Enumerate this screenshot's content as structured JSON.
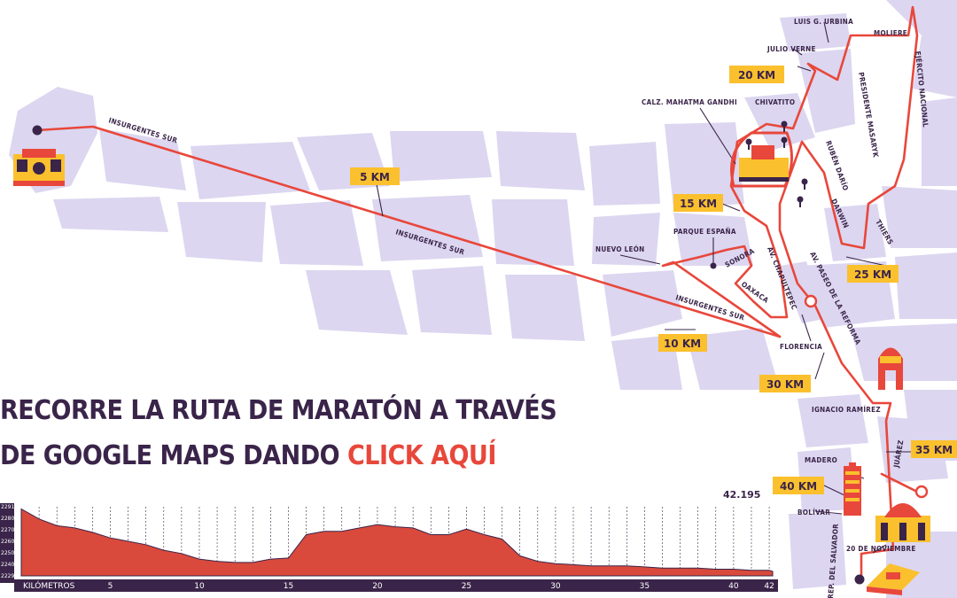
{
  "colors": {
    "route": "#e8473b",
    "block": "#dcd6f0",
    "ink": "#3a2449",
    "badge": "#fbc02d",
    "profile_fill": "#d94a3c",
    "axis_bar": "#3a2449"
  },
  "headline": {
    "line1": "RECORRE LA RUTA DE MARATÓN A TRAVÉS",
    "line2_prefix": "DE GOOGLE MAPS DANDO ",
    "cta": "CLICK AQUÍ"
  },
  "km_markers": {
    "km5": "5 KM",
    "km10": "10 KM",
    "km15": "15 KM",
    "km20": "20 KM",
    "km25": "25 KM",
    "km30": "30 KM",
    "km35": "35 KM",
    "km40": "40 KM"
  },
  "streets": {
    "insurgentes_1": "INSURGENTES SUR",
    "insurgentes_2": "INSURGENTES SUR",
    "insurgentes_3": "INSURGENTES SUR",
    "nuevo_leon": "NUEVO LEÓN",
    "parque_espana": "PARQUE ESPAÑA",
    "sonora": "SONORA",
    "oaxaca": "OAXACA",
    "chapultepec": "AV. CHAPULTEPEC",
    "reforma": "AV. PASEO DE LA REFORMA",
    "florencia": "FLORENCIA",
    "ignacio": "IGNACIO RAMÍREZ",
    "juarez": "JUÁREZ",
    "madero": "MADERO",
    "bolivar": "BOLÍVAR",
    "veinte_nov": "20 DE NOVIEMBRE",
    "rep_salvador": "REP. DEL SALVADOR",
    "mahatma": "CALZ. MAHATMA GANDHI",
    "chivatito": "CHIVATITO",
    "julio_verne": "JULIO VERNE",
    "luis_urbina": "LUIS G. URBINA",
    "moliere": "MOLIERE",
    "masaryk": "PRESIDENTE MASARYK",
    "ejercito": "EJÉRCITO NACIONAL",
    "ruben_dario": "RUBÉN DARÍO",
    "darwin": "DARWIN",
    "thiers": "THIERS"
  },
  "chart_data": {
    "type": "area",
    "xlabel": "KILÓMETROS",
    "x_ticks": [
      "5",
      "10",
      "15",
      "20",
      "25",
      "30",
      "35",
      "40",
      "42"
    ],
    "y_ticks": [
      "2291",
      "2280",
      "2270",
      "2260",
      "2250",
      "2240",
      "2229"
    ],
    "ylim": [
      2229,
      2291
    ],
    "xlim": [
      0,
      42.195
    ],
    "end_label": "42.195",
    "x": [
      0,
      1,
      2,
      3,
      4,
      5,
      6,
      7,
      8,
      9,
      10,
      11,
      12,
      13,
      14,
      15,
      16,
      17,
      18,
      19,
      20,
      21,
      22,
      23,
      24,
      25,
      26,
      27,
      28,
      29,
      30,
      31,
      32,
      33,
      34,
      35,
      36,
      37,
      38,
      39,
      40,
      41,
      42,
      42.195
    ],
    "values": [
      2289,
      2280,
      2274,
      2272,
      2268,
      2263,
      2260,
      2257,
      2252,
      2249,
      2244,
      2242,
      2241,
      2241,
      2244,
      2245,
      2266,
      2269,
      2269,
      2272,
      2275,
      2273,
      2272,
      2266,
      2266,
      2271,
      2266,
      2262,
      2247,
      2242,
      2240,
      2239,
      2238,
      2238,
      2238,
      2237,
      2236,
      2236,
      2236,
      2235,
      2235,
      2234,
      2234,
      2233
    ]
  }
}
